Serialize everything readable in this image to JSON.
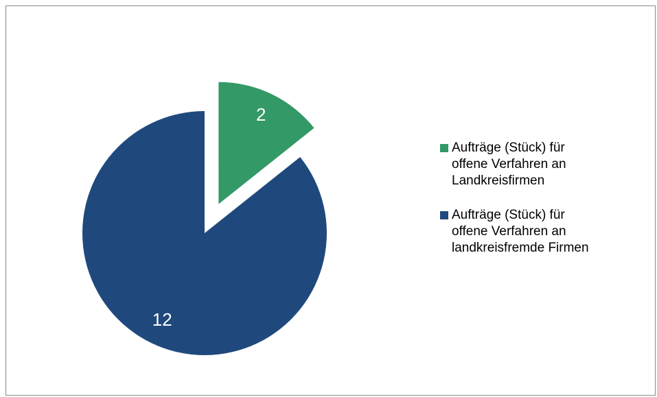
{
  "chart_data": {
    "type": "pie",
    "categories": [
      "Aufträge (Stück) für\noffene Verfahren an\nLandkreisfirmen",
      "Aufträge (Stück) für\noffene Verfahren an\nlandkreisfremde Firmen"
    ],
    "values": [
      2,
      12
    ],
    "colors": [
      "#339966",
      "#1f497d"
    ],
    "explode": [
      true,
      false
    ],
    "legend": "right"
  }
}
